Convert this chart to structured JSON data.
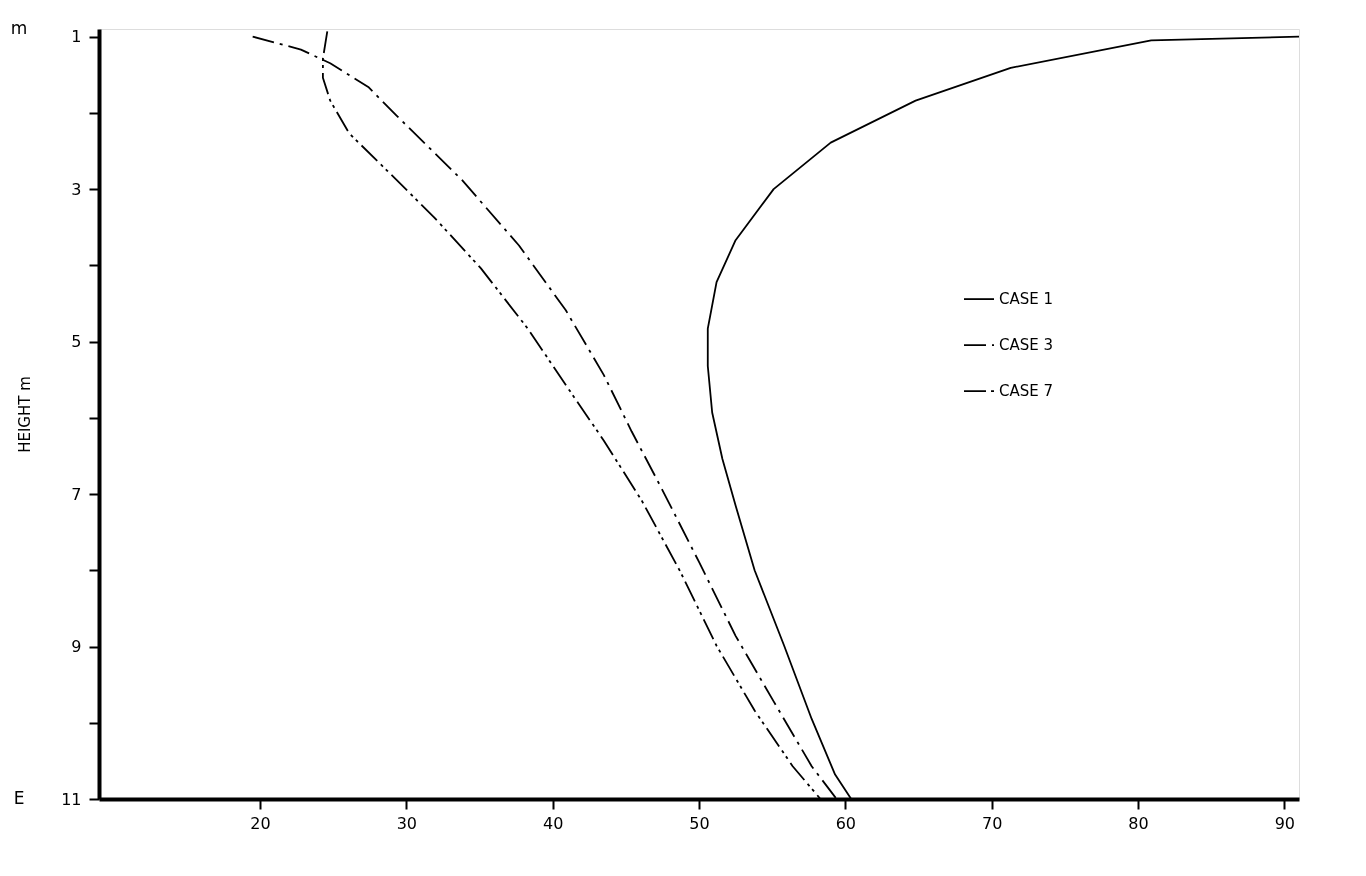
{
  "chart_data": {
    "type": "line",
    "ylabel": "HEIGHT m",
    "annotations": [
      "m",
      "E"
    ],
    "xlim": [
      9,
      91
    ],
    "xticks": [
      20,
      30,
      40,
      50,
      60,
      70,
      80,
      90
    ],
    "ylim": [
      11,
      0.9
    ],
    "yticks": [
      1,
      {
        "value": 2,
        "label": null
      },
      3,
      {
        "value": 4,
        "label": null
      },
      5,
      {
        "value": 6,
        "label": null
      },
      7,
      {
        "value": 8,
        "label": null
      },
      9,
      {
        "value": 10,
        "label": null
      },
      11
    ],
    "grid": false,
    "legend": "right",
    "marker": "none",
    "series": [
      {
        "name": "CASE 1",
        "color": "#000000",
        "line_style": "solid",
        "x": [
          91.0,
          80.9,
          71.3,
          64.8,
          59.0,
          55.1,
          52.5,
          51.2,
          50.6,
          50.6,
          50.9,
          51.6,
          52.5,
          53.8,
          55.8,
          57.7,
          59.3,
          60.4
        ],
        "values": [
          1.0,
          1.05,
          1.41,
          1.84,
          2.39,
          3.0,
          3.67,
          4.22,
          4.83,
          5.32,
          5.93,
          6.54,
          7.15,
          8.0,
          8.98,
          9.95,
          10.68,
          11.0
        ]
      },
      {
        "name": "CASE 3",
        "color": "#000000",
        "line_style": "dashed",
        "x": [
          19.5,
          22.8,
          24.8,
          27.4,
          29.3,
          33.8,
          37.7,
          40.9,
          43.5,
          45.4,
          47.4,
          50.0,
          52.5,
          55.1,
          57.7,
          59.4
        ],
        "values": [
          1.0,
          1.17,
          1.35,
          1.66,
          2.03,
          2.88,
          3.74,
          4.59,
          5.44,
          6.18,
          6.91,
          7.89,
          8.86,
          9.72,
          10.57,
          11.0
        ]
      },
      {
        "name": "CASE 7",
        "color": "#000000",
        "line_style": "dashed",
        "x": [
          24.6,
          24.3,
          24.3,
          24.8,
          26.1,
          28.7,
          31.9,
          35.1,
          38.3,
          40.9,
          43.5,
          46.1,
          48.7,
          51.2,
          53.8,
          56.4,
          58.3
        ],
        "values": [
          0.93,
          1.29,
          1.54,
          1.84,
          2.27,
          2.76,
          3.37,
          4.04,
          4.83,
          5.57,
          6.3,
          7.09,
          8.01,
          8.99,
          9.84,
          10.57,
          11.0
        ]
      }
    ]
  }
}
